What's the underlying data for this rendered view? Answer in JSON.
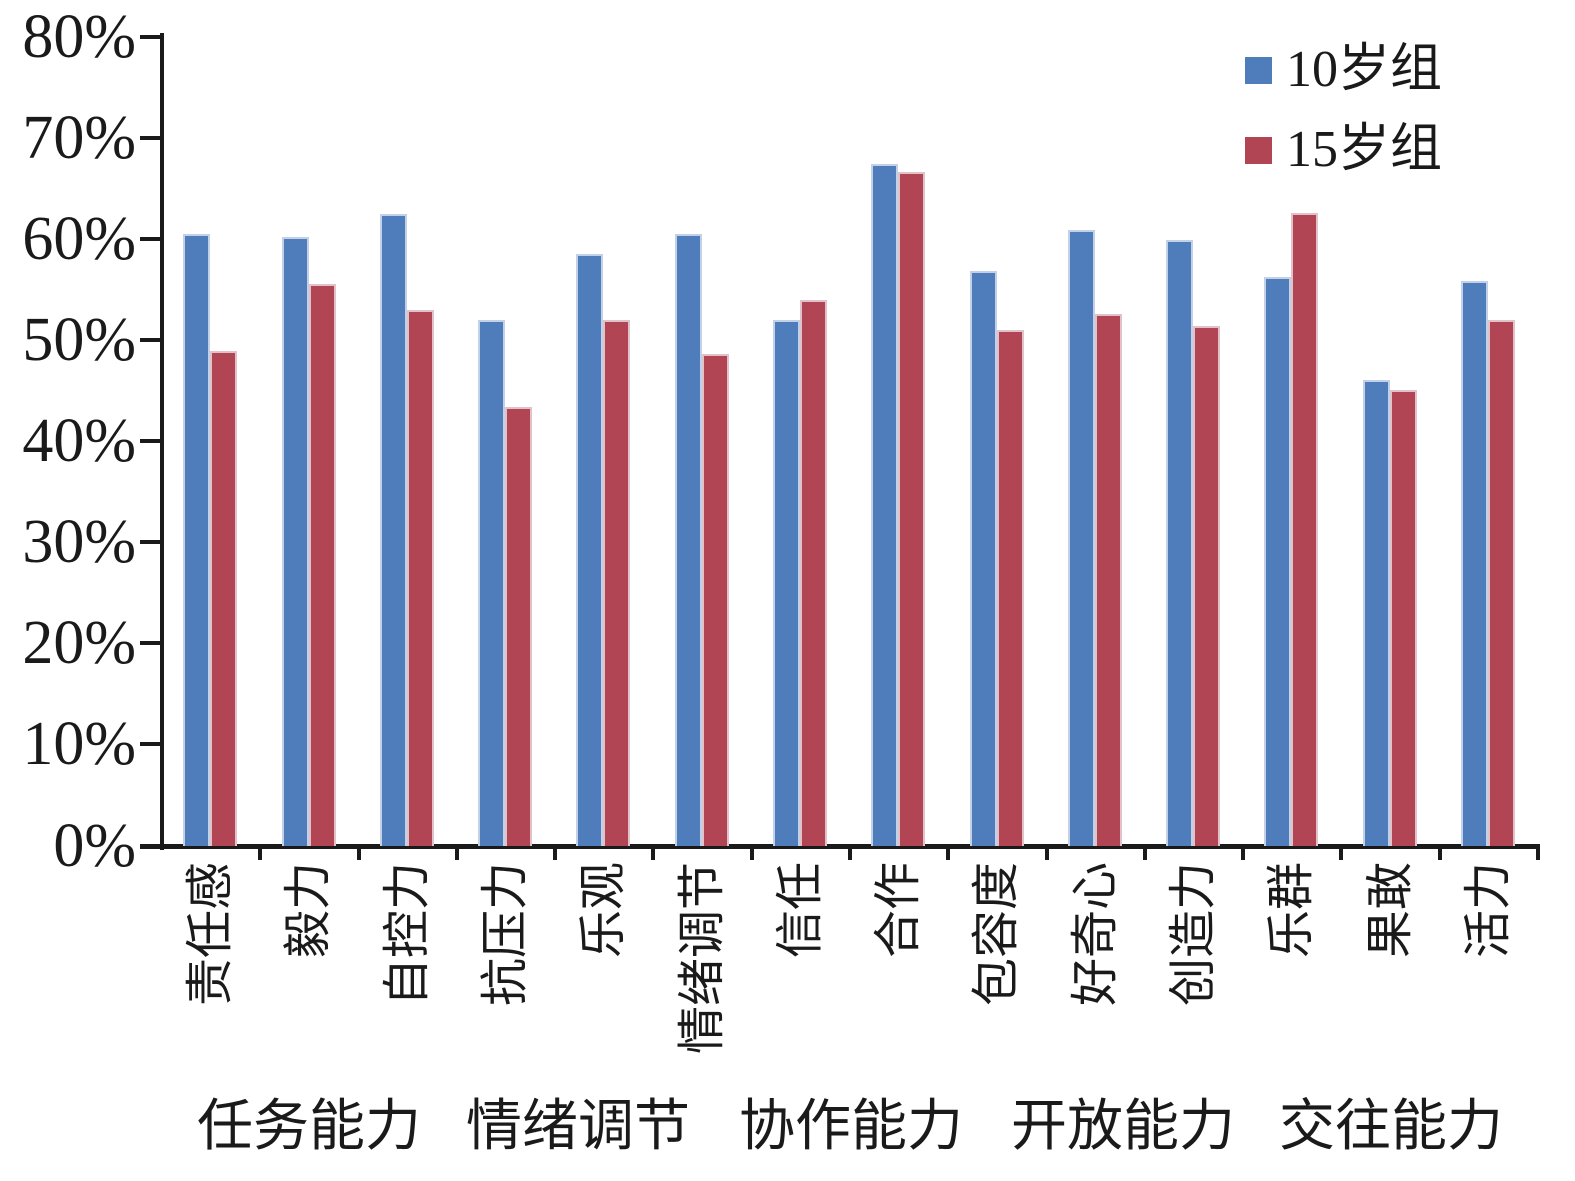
{
  "figure": {
    "background": "#ffffff",
    "axis_color": "#1a1a1a"
  },
  "legend": {
    "position": "top-right",
    "items": [
      {
        "label": "10岁组",
        "color": "#4f7cba"
      },
      {
        "label": "15岁组",
        "color": "#b24553"
      }
    ]
  },
  "chart_data": {
    "type": "bar",
    "title": "",
    "xlabel": "",
    "ylabel": "",
    "grid": false,
    "legend_position": "top-right",
    "categories": [
      "责任感",
      "毅力",
      "自控力",
      "抗压力",
      "乐观",
      "情绪调节",
      "信任",
      "合作",
      "包容度",
      "好奇心",
      "创造力",
      "乐群",
      "果敢",
      "活力"
    ],
    "category_groups": [
      {
        "label": "任务能力",
        "span": 3
      },
      {
        "label": "情绪调节",
        "span": 3
      },
      {
        "label": "协作能力",
        "span": 2
      },
      {
        "label": "开放能力",
        "span": 3
      },
      {
        "label": "交往能力",
        "span": 3
      }
    ],
    "series": [
      {
        "name": "10岁组",
        "color": "#4f7cba",
        "edge_color": "#c3d1e8",
        "values": [
          60.5,
          60.2,
          62.5,
          52.0,
          58.6,
          60.5,
          52.0,
          67.5,
          56.9,
          60.9,
          59.9,
          56.3,
          46.1,
          55.9
        ]
      },
      {
        "name": "15岁组",
        "color": "#b24553",
        "edge_color": "#e2c2c9",
        "values": [
          49.0,
          55.6,
          53.0,
          43.4,
          52.0,
          48.7,
          54.0,
          66.7,
          51.0,
          52.6,
          51.4,
          62.6,
          45.1,
          52.0
        ]
      }
    ],
    "y_axis": {
      "min": 0,
      "max": 80,
      "step": 10,
      "format": "percent",
      "tick_labels": [
        "0%",
        "10%",
        "20%",
        "30%",
        "40%",
        "50%",
        "60%",
        "70%",
        "80%"
      ]
    }
  }
}
